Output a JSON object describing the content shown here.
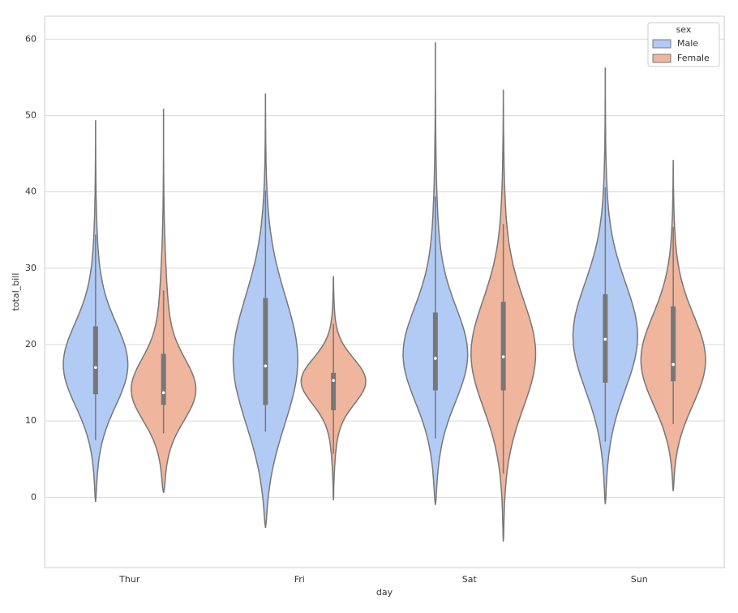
{
  "chart_data": {
    "type": "violin",
    "xlabel": "day",
    "ylabel": "total_bill",
    "categories": [
      "Thur",
      "Fri",
      "Sat",
      "Sun"
    ],
    "ylim": [
      -9.2,
      63
    ],
    "yticks": [
      0,
      10,
      20,
      30,
      40,
      50,
      60
    ],
    "grid": true,
    "legend_title": "sex",
    "legend_position": "upper right",
    "series": [
      {
        "name": "Male",
        "color": "#b2cbf5",
        "extent_low": [
          -0.6,
          -4,
          -1,
          -0.9
        ],
        "whisker_low": [
          7.5,
          8.6,
          7.7,
          7.3
        ],
        "q1": [
          13.5,
          12.1,
          14,
          15
        ],
        "median": [
          17,
          17.2,
          18.2,
          20.7
        ],
        "q3": [
          22.4,
          26.1,
          24.2,
          26.6
        ],
        "whisker_high": [
          34.4,
          40.2,
          39.4,
          40.6
        ],
        "extent_high": [
          49.3,
          52.8,
          59.5,
          56.2
        ]
      },
      {
        "name": "Female",
        "color": "#efb59d",
        "extent_low": [
          0.6,
          -0.4,
          -5.8,
          0.8
        ],
        "whisker_low": [
          8.4,
          5.7,
          3.1,
          9.6
        ],
        "q1": [
          12.1,
          11.4,
          14,
          15.2
        ],
        "median": [
          13.7,
          15.3,
          18.4,
          17.4
        ],
        "q3": [
          18.8,
          16.3,
          25.6,
          25
        ],
        "whisker_high": [
          27.1,
          22.7,
          35.8,
          35.4
        ],
        "extent_high": [
          50.8,
          28.9,
          53.3,
          44.1
        ]
      }
    ]
  }
}
